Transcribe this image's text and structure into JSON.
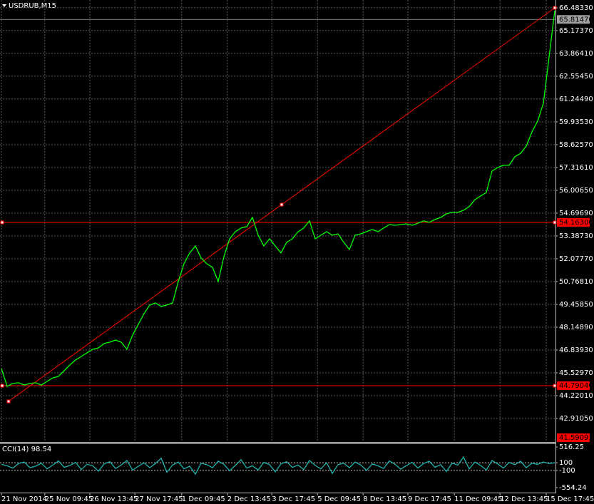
{
  "chart_data": [
    {
      "type": "line",
      "title": "USDRUB,M15",
      "color": "#00ff00",
      "values": [
        45.78,
        44.75,
        44.92,
        44.96,
        44.83,
        44.92,
        44.96,
        44.83,
        45.04,
        45.24,
        45.33,
        45.65,
        45.98,
        46.27,
        46.47,
        46.68,
        46.88,
        46.96,
        47.21,
        47.29,
        47.41,
        47.29,
        46.88,
        47.7,
        48.31,
        48.93,
        49.42,
        49.54,
        49.34,
        49.42,
        49.54,
        50.77,
        51.79,
        52.41,
        52.81,
        52.12,
        51.79,
        51.59,
        50.77,
        52.2,
        53.22,
        53.63,
        53.84,
        53.92,
        54.45,
        53.43,
        52.81,
        53.22,
        52.81,
        52.41,
        53.02,
        53.22,
        53.63,
        53.84,
        54.25,
        53.22,
        53.43,
        53.63,
        53.43,
        53.51,
        53.02,
        52.61,
        53.43,
        53.51,
        53.63,
        53.76,
        53.63,
        53.84,
        54.04,
        54.0,
        54.04,
        54.08,
        54.0,
        54.12,
        54.25,
        54.17,
        54.33,
        54.45,
        54.66,
        54.74,
        54.74,
        54.86,
        55.07,
        55.47,
        55.68,
        55.88,
        57.11,
        57.32,
        57.44,
        57.44,
        57.93,
        58.13,
        58.54,
        59.36,
        59.98,
        61.0,
        63.66,
        66.32
      ],
      "xlim": [
        0,
        97
      ],
      "xticks": [
        {
          "value": 0,
          "label": "21 Nov 2014"
        },
        {
          "value": 7.6,
          "label": "25 Nov 09:45"
        },
        {
          "value": 15.5,
          "label": "26 Nov 13:45"
        },
        {
          "value": 23.4,
          "label": "27 Nov 17:45"
        },
        {
          "value": 31.6,
          "label": "1 Dec 09:45"
        },
        {
          "value": 39.6,
          "label": "2 Dec 13:45"
        },
        {
          "value": 47.4,
          "label": "3 Dec 17:45"
        },
        {
          "value": 55.4,
          "label": "5 Dec 09:45"
        },
        {
          "value": 63.4,
          "label": "8 Dec 13:45"
        },
        {
          "value": 71.25,
          "label": "9 Dec 17:45"
        },
        {
          "value": 79.4,
          "label": "11 Dec 09:45"
        },
        {
          "value": 87.4,
          "label": "12 Dec 13:45"
        },
        {
          "value": 95.5,
          "label": "15 Dec 17:45"
        }
      ],
      "ylim": [
        41.56,
        66.93
      ],
      "yticks": [
        {
          "value": 66.4833,
          "label": "66.48330"
        },
        {
          "value": 65.1737,
          "label": "65.17370"
        },
        {
          "value": 63.8641,
          "label": "63.86410"
        },
        {
          "value": 62.5545,
          "label": "62.55450"
        },
        {
          "value": 61.2449,
          "label": "61.24490"
        },
        {
          "value": 59.9353,
          "label": "59.93530"
        },
        {
          "value": 58.6257,
          "label": "58.62570"
        },
        {
          "value": 57.3161,
          "label": "57.31610"
        },
        {
          "value": 56.0065,
          "label": "56.00650"
        },
        {
          "value": 54.6969,
          "label": "54.69690"
        },
        {
          "value": 53.3873,
          "label": "53.38730"
        },
        {
          "value": 52.0777,
          "label": "52.07770"
        },
        {
          "value": 50.7681,
          "label": "50.76810"
        },
        {
          "value": 49.4585,
          "label": "49.45850"
        },
        {
          "value": 48.1489,
          "label": "48.14890"
        },
        {
          "value": 46.8393,
          "label": "46.83930"
        },
        {
          "value": 45.5297,
          "label": "45.52970"
        },
        {
          "value": 44.2201,
          "label": "44.22010"
        },
        {
          "value": 42.9105,
          "label": "42.91050"
        }
      ],
      "grid": true,
      "hlines": [
        {
          "value": 54.163,
          "label": "54.16300"
        },
        {
          "value": 44.7904,
          "label": "44.79040"
        }
      ],
      "hline_color": "#ff0000",
      "bid": {
        "value": 65.8147,
        "label": "65.81470"
      },
      "low_label": {
        "value": 41.59,
        "label": "41.59093"
      },
      "trendline": {
        "x": [
          1.25,
          97
        ],
        "y": [
          43.89,
          66.48
        ],
        "color": "#ff0000"
      }
    },
    {
      "type": "line",
      "title": "CCI(14) 98.54",
      "color": "#20b2aa",
      "values": [
        60,
        20,
        -40,
        80,
        120,
        -30,
        10,
        90,
        -60,
        40,
        150,
        -20,
        30,
        110,
        -80,
        60,
        20,
        -120,
        70,
        130,
        -50,
        40,
        160,
        -90,
        10,
        100,
        -30,
        80,
        220,
        -150,
        40,
        120,
        -60,
        10,
        -200,
        90,
        50,
        -30,
        140,
        60,
        -110,
        30,
        180,
        -40,
        20,
        -90,
        110,
        50,
        -140,
        70,
        130,
        -20,
        40,
        -80,
        160,
        30,
        -60,
        100,
        -180,
        50,
        90,
        -30,
        120,
        40,
        -100,
        70,
        20,
        -50,
        150,
        60,
        -70,
        30,
        110,
        -40,
        80,
        140,
        -20,
        50,
        -130,
        90,
        40,
        250,
        -60,
        120,
        30,
        -90,
        160,
        70,
        -40,
        110,
        50,
        140,
        -30,
        90,
        60,
        120,
        80,
        98.54
      ],
      "xlim": [
        0,
        97
      ],
      "ylim": [
        -554.24,
        516.25
      ],
      "yticks": [
        516.25,
        100,
        -100,
        -554.24
      ]
    }
  ]
}
